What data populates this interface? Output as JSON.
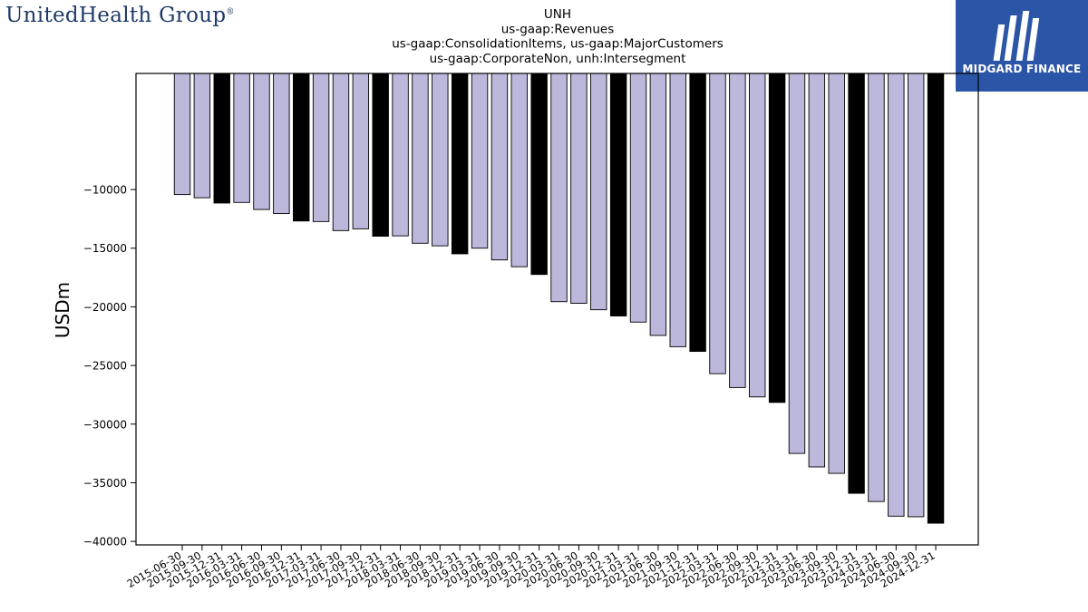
{
  "company_logo": {
    "name": "UnitedHealth Group",
    "registered": "®"
  },
  "brand_badge": {
    "name": "MIDGARD FINANCE",
    "bg_color": "#2b55a6"
  },
  "chart_data": {
    "type": "bar",
    "title_lines": [
      "UNH",
      "us-gaap:Revenues",
      "us-gaap:ConsolidationItems, us-gaap:MajorCustomers",
      "us-gaap:CorporateNon, unh:Intersegment"
    ],
    "xlabel": "",
    "ylabel": "USDm",
    "ylim": [
      -40300,
      -100
    ],
    "yticks": [
      -10000,
      -15000,
      -20000,
      -25000,
      -30000,
      -35000,
      -40000
    ],
    "ytick_labels": [
      "−10000",
      "−15000",
      "−20000",
      "−25000",
      "−30000",
      "−35000",
      "−40000"
    ],
    "grid": false,
    "colors": {
      "quarter": "#bcb8db",
      "year_end": "#000000",
      "edge": "#000000"
    },
    "categories": [
      "2015-06-30",
      "2015-09-30",
      "2015-12-31",
      "2016-03-31",
      "2016-06-30",
      "2016-09-30",
      "2016-12-31",
      "2017-03-31",
      "2017-06-30",
      "2017-09-30",
      "2017-12-31",
      "2018-03-31",
      "2018-06-30",
      "2018-09-30",
      "2018-12-31",
      "2019-03-31",
      "2019-06-30",
      "2019-09-30",
      "2019-12-31",
      "2020-03-31",
      "2020-06-30",
      "2020-09-30",
      "2020-12-31",
      "2021-03-31",
      "2021-06-30",
      "2021-09-30",
      "2021-12-31",
      "2022-03-31",
      "2022-06-30",
      "2022-09-30",
      "2022-12-31",
      "2023-03-31",
      "2023-06-30",
      "2023-09-30",
      "2023-12-31",
      "2024-03-31",
      "2024-06-30",
      "2024-09-30",
      "2024-12-31"
    ],
    "values": [
      -10430,
      -10700,
      -11150,
      -11100,
      -11700,
      -12050,
      -12680,
      -12730,
      -13500,
      -13350,
      -13980,
      -13950,
      -14580,
      -14800,
      -15480,
      -15000,
      -16000,
      -16580,
      -17240,
      -19560,
      -19700,
      -20250,
      -20780,
      -21300,
      -22440,
      -23400,
      -23800,
      -25700,
      -26880,
      -27680,
      -28150,
      -32500,
      -33650,
      -34200,
      -35900,
      -36600,
      -37850,
      -37900,
      -38450
    ]
  }
}
